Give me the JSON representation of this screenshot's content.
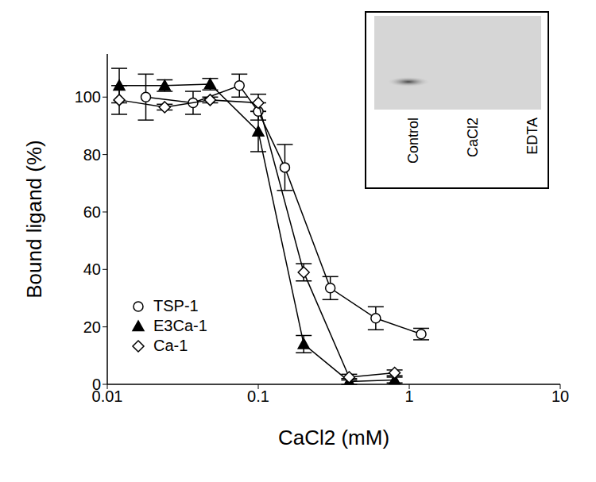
{
  "chart_data": {
    "type": "scatter",
    "xlabel": "CaCl2  (mM)",
    "ylabel": "Bound ligand (%)",
    "log": "x",
    "grid": false,
    "legend": "lower left",
    "xlim": [
      0.01,
      10
    ],
    "xticks": [
      0.01,
      0.1,
      1,
      10
    ],
    "ylim": [
      0,
      115
    ],
    "yticks": [
      0,
      20,
      40,
      60,
      80,
      100
    ],
    "series": [
      {
        "name": "TSP-1",
        "color": "#000000",
        "marker": "open-circle",
        "line_style": "solid",
        "x": [
          0.018,
          0.037,
          0.075,
          0.1,
          0.15,
          0.3,
          0.6,
          1.2
        ],
        "values": [
          100,
          98,
          104,
          95,
          75.5,
          33.5,
          23,
          17.5
        ],
        "errors": [
          8,
          4,
          4,
          3,
          8,
          4,
          4,
          2
        ]
      },
      {
        "name": "E3Ca-1",
        "color": "#000000",
        "marker": "filled-triangle",
        "line_style": "solid",
        "x": [
          0.012,
          0.024,
          0.048,
          0.1,
          0.2,
          0.4,
          0.8
        ],
        "values": [
          104,
          104,
          104.5,
          88,
          14,
          1,
          1.5
        ],
        "errors": [
          6,
          2,
          2,
          7,
          3,
          1,
          1
        ]
      },
      {
        "name": "Ca-1",
        "color": "#000000",
        "marker": "open-diamond",
        "line_style": "solid",
        "x": [
          0.012,
          0.024,
          0.048,
          0.1,
          0.2,
          0.4,
          0.8
        ],
        "values": [
          99,
          96.5,
          99,
          98,
          39,
          2.5,
          4
        ],
        "errors": [
          5,
          1,
          1,
          3,
          3,
          1,
          1
        ]
      }
    ],
    "annotations": [
      "Control",
      "CaCl2",
      "EDTA"
    ]
  }
}
